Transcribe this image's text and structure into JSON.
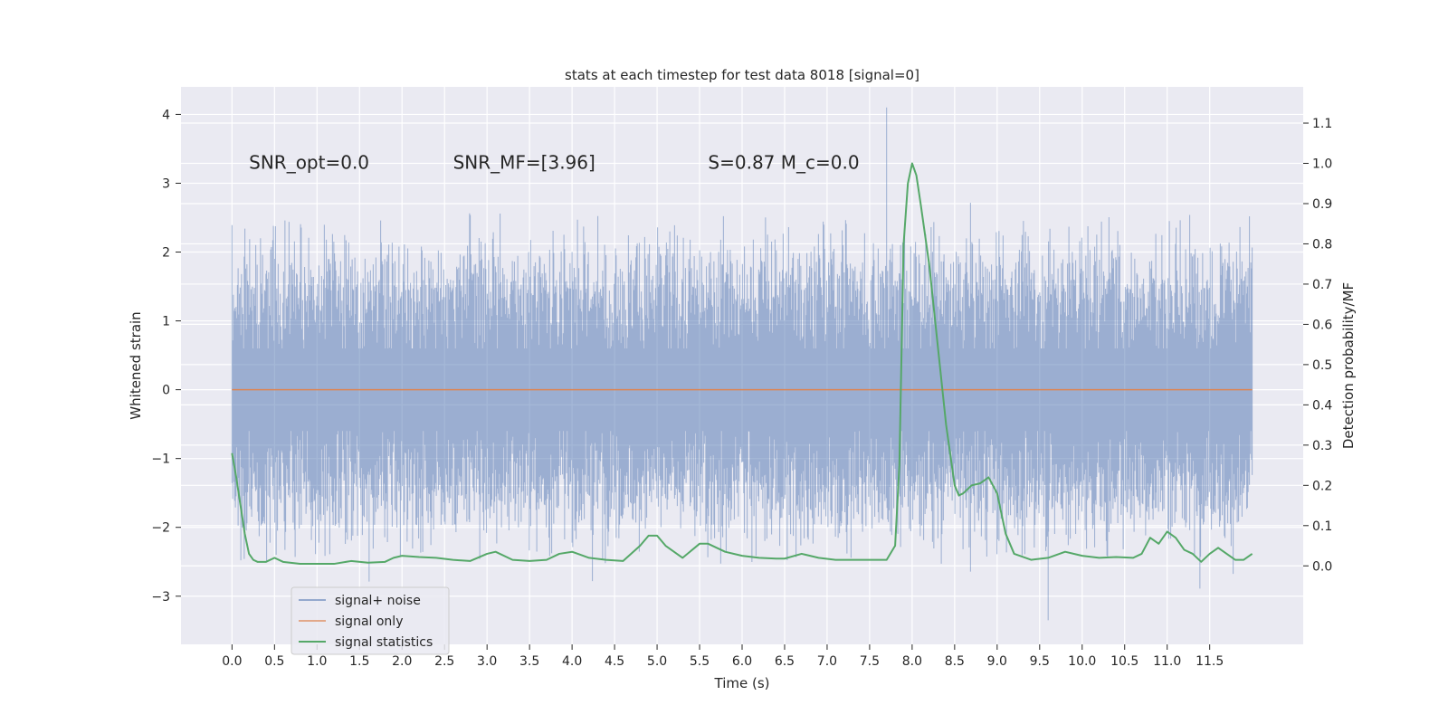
{
  "chart_data": {
    "type": "line",
    "title": "stats at each timestep for test data 8018 [signal=0]",
    "xlabel": "Time (s)",
    "ylabel": "Whitened strain",
    "ylabel_right": "Detection probability/MF",
    "xlim": [
      -0.6,
      12.6
    ],
    "ylim": [
      -3.7,
      4.4
    ],
    "ylim_right": [
      -0.195,
      1.19
    ],
    "x_ticks": [
      0.0,
      0.5,
      1.0,
      1.5,
      2.0,
      2.5,
      3.0,
      3.5,
      4.0,
      4.5,
      5.0,
      5.5,
      6.0,
      6.5,
      7.0,
      7.5,
      8.0,
      8.5,
      9.0,
      9.5,
      10.0,
      10.5,
      11.0,
      11.5
    ],
    "x_tick_labels": [
      "0.0",
      "0.5",
      "1.0",
      "1.5",
      "2.0",
      "2.5",
      "3.0",
      "3.5",
      "4.0",
      "4.5",
      "5.0",
      "5.5",
      "6.0",
      "6.5",
      "7.0",
      "7.5",
      "8.0",
      "8.5",
      "9.0",
      "9.5",
      "10.0",
      "10.5",
      "11.0",
      "11.5"
    ],
    "y_ticks": [
      -3,
      -2,
      -1,
      0,
      1,
      2,
      3,
      4
    ],
    "y_tick_labels": [
      "−3",
      "−2",
      "−1",
      "0",
      "1",
      "2",
      "3",
      "4"
    ],
    "y_ticks_right": [
      0.0,
      0.1,
      0.2,
      0.3,
      0.4,
      0.5,
      0.6,
      0.7,
      0.8,
      0.9,
      1.0,
      1.1
    ],
    "y_tick_labels_right": [
      "0.0",
      "0.1",
      "0.2",
      "0.3",
      "0.4",
      "0.5",
      "0.6",
      "0.7",
      "0.8",
      "0.9",
      "1.0",
      "1.1"
    ],
    "grid": true,
    "legend_position": "lower-left",
    "annotations": [
      {
        "label": "SNR_opt=0.0",
        "x": 0.2,
        "y": 3.3
      },
      {
        "label": "SNR_MF=[3.96]",
        "x": 2.6,
        "y": 3.3
      },
      {
        "label": "S=0.87   M_c=0.0",
        "x": 5.6,
        "y": 3.3
      }
    ],
    "series": [
      {
        "name": "signal+ noise",
        "color": "#4c72b0",
        "axis": "left",
        "kind": "noise",
        "x_range": [
          0.0,
          12.0
        ],
        "typical_envelope": [
          -1.5,
          1.5
        ],
        "max_value": 4.1,
        "max_at": 7.7,
        "min_value": -3.35,
        "min_at": 9.6
      },
      {
        "name": "signal only",
        "color": "#dd8452",
        "axis": "left",
        "x": [
          0.0,
          12.0
        ],
        "values": [
          0.0,
          0.0
        ]
      },
      {
        "name": "signal statistics",
        "color": "#55a868",
        "axis": "right",
        "x": [
          0.0,
          0.05,
          0.1,
          0.15,
          0.2,
          0.25,
          0.3,
          0.4,
          0.5,
          0.6,
          0.8,
          1.0,
          1.1,
          1.2,
          1.4,
          1.6,
          1.8,
          1.9,
          2.0,
          2.2,
          2.4,
          2.6,
          2.8,
          3.0,
          3.1,
          3.3,
          3.5,
          3.7,
          3.85,
          4.0,
          4.2,
          4.4,
          4.6,
          4.8,
          4.9,
          5.0,
          5.1,
          5.3,
          5.5,
          5.6,
          5.8,
          6.0,
          6.2,
          6.4,
          6.5,
          6.7,
          6.9,
          7.1,
          7.3,
          7.5,
          7.7,
          7.8,
          7.85,
          7.9,
          7.95,
          8.0,
          8.05,
          8.1,
          8.2,
          8.3,
          8.4,
          8.5,
          8.55,
          8.6,
          8.7,
          8.8,
          8.9,
          9.0,
          9.1,
          9.2,
          9.4,
          9.6,
          9.8,
          10.0,
          10.2,
          10.4,
          10.6,
          10.7,
          10.8,
          10.9,
          11.0,
          11.1,
          11.2,
          11.3,
          11.4,
          11.5,
          11.6,
          11.7,
          11.8,
          11.9,
          12.0
        ],
        "values": [
          0.28,
          0.22,
          0.15,
          0.08,
          0.03,
          0.015,
          0.01,
          0.01,
          0.02,
          0.01,
          0.005,
          0.005,
          0.005,
          0.005,
          0.012,
          0.008,
          0.01,
          0.02,
          0.025,
          0.022,
          0.02,
          0.015,
          0.012,
          0.03,
          0.035,
          0.015,
          0.012,
          0.015,
          0.03,
          0.035,
          0.02,
          0.015,
          0.012,
          0.05,
          0.075,
          0.075,
          0.05,
          0.02,
          0.055,
          0.055,
          0.035,
          0.025,
          0.02,
          0.018,
          0.018,
          0.03,
          0.02,
          0.015,
          0.015,
          0.015,
          0.015,
          0.05,
          0.25,
          0.8,
          0.95,
          1.0,
          0.97,
          0.9,
          0.75,
          0.55,
          0.35,
          0.2,
          0.175,
          0.18,
          0.2,
          0.205,
          0.22,
          0.18,
          0.08,
          0.03,
          0.015,
          0.02,
          0.035,
          0.025,
          0.02,
          0.022,
          0.02,
          0.03,
          0.07,
          0.055,
          0.085,
          0.07,
          0.04,
          0.03,
          0.01,
          0.03,
          0.045,
          0.03,
          0.015,
          0.015,
          0.03
        ]
      }
    ]
  }
}
